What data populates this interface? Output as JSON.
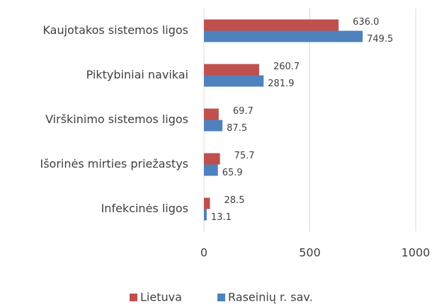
{
  "chart_data": {
    "type": "bar",
    "orientation": "horizontal",
    "categories": [
      "Kaujotakos sistemos ligos",
      "Piktybiniai navikai",
      "Virškinimo sistemos ligos",
      "Išorinės mirties priežastys",
      "Infekcinės ligos"
    ],
    "series": [
      {
        "name": "Lietuva",
        "color": "#c0504d",
        "values": [
          636.0,
          260.7,
          69.7,
          75.7,
          28.5
        ],
        "value_labels": [
          "636.0",
          "260.7",
          "69.7",
          "75.7",
          "28.5"
        ]
      },
      {
        "name": "Raseinių r. sav.",
        "color": "#4f81bd",
        "values": [
          749.5,
          281.9,
          87.5,
          65.9,
          13.1
        ],
        "value_labels": [
          "749.5",
          "281.9",
          "87.5",
          "65.9",
          "13.1"
        ]
      }
    ],
    "xlim": [
      0,
      1000
    ],
    "xticks": [
      0,
      500,
      1000
    ],
    "grid": true,
    "legend": "bottom"
  }
}
